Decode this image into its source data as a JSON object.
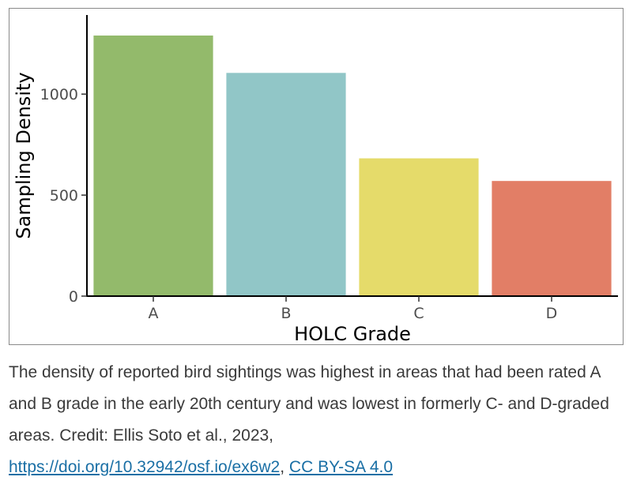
{
  "chart_data": {
    "type": "bar",
    "categories": [
      "A",
      "B",
      "C",
      "D"
    ],
    "values": [
      1290,
      1105,
      682,
      570
    ],
    "colors": [
      "#93ba6b",
      "#91c6c7",
      "#e5db6a",
      "#e27e66"
    ],
    "xlabel": "HOLC Grade",
    "ylabel": "Sampling Density",
    "ylim": [
      0,
      1290
    ],
    "yticks": [
      0,
      500,
      1000
    ],
    "grid": false,
    "legend": "none"
  },
  "caption": {
    "text": "The density of reported bird sightings was highest in areas that had been rated A and B grade in the early 20th century and was lowest in formerly C- and D-graded areas. Credit: Ellis Soto et al., 2023,",
    "doi_link": "https://doi.org/10.32942/osf.io/ex6w2",
    "separator": ",",
    "license_link": "CC BY-SA 4.0"
  }
}
